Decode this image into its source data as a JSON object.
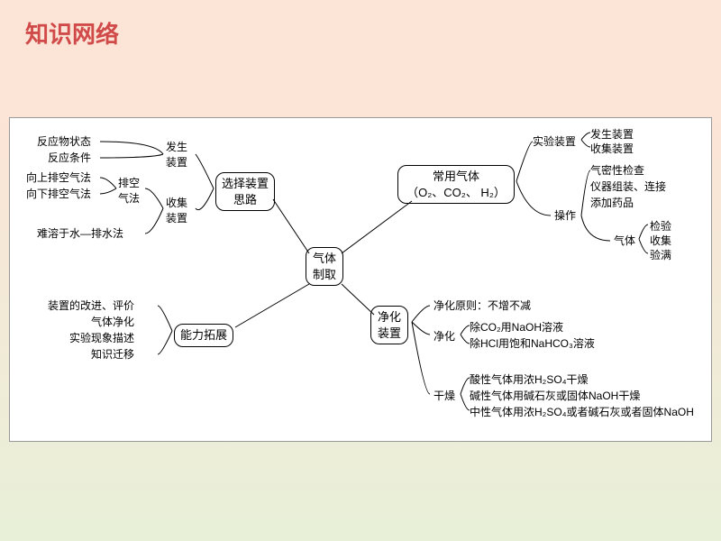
{
  "title": "知识网络",
  "structure_type": "tree",
  "colors": {
    "title_color": "#d14a4a",
    "bg_top": "#fce4d6",
    "bg_bottom": "#e8f0d8",
    "panel_bg": "#ffffff",
    "line_color": "#000000",
    "text_color": "#000000"
  },
  "center": {
    "label": "气体\n制取"
  },
  "branches": {
    "select": {
      "label": "选择装置\n思路"
    },
    "common": {
      "label": "常用气体\n（O₂、CO₂、 H₂）"
    },
    "ability": {
      "label": "能力拓展"
    },
    "purify": {
      "label": "净化\n装置"
    }
  },
  "select_children": {
    "fasheng": "发生\n装置",
    "fasheng_items": [
      "反应物状态",
      "反应条件"
    ],
    "shouji": "收集\n装置",
    "paikong": "排空\n气法",
    "paikong_items": [
      "向上排空气法",
      "向下排空气法"
    ],
    "paishuifa": "难溶于水—排水法"
  },
  "common_children": {
    "shiyan": "实验装置",
    "shiyan_items": [
      "发生装置",
      "收集装置"
    ],
    "caozuo": "操作",
    "caozuo_items": [
      "气密性检查",
      "仪器组装、连接",
      "添加药品"
    ],
    "qiti": "气体",
    "qiti_items": [
      "检验",
      "收集",
      "验满"
    ]
  },
  "ability_items": [
    "装置的改进、评价",
    "气体净化",
    "实验现象描述",
    "知识迁移"
  ],
  "purify_children": {
    "principle": "净化原则：不增不减",
    "jinghua": "净化",
    "jinghua_items": [
      "除CO₂用NaOH溶液",
      "除HCl用饱和NaHCO₃溶液"
    ],
    "ganzao": "干燥",
    "ganzao_items": [
      "酸性气体用浓H₂SO₄干燥",
      "碱性气体用碱石灰或固体NaOH干燥",
      "中性气体用浓H₂SO₄或者碱石灰或者固体NaOH"
    ]
  }
}
